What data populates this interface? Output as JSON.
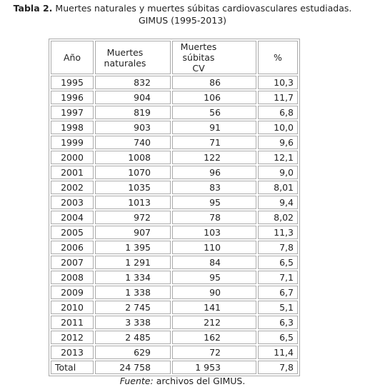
{
  "caption": {
    "label": "Tabla 2.",
    "line1": "Muertes naturales y muertes súbitas cardiovasculares estudiadas.",
    "line2": "GIMUS (1995-2013)"
  },
  "table": {
    "header": [
      "Año",
      "Muertes naturales",
      "Muertes súbitas CV",
      "%"
    ],
    "rows": [
      [
        "1995",
        "832",
        "86",
        "10,3"
      ],
      [
        "1996",
        "904",
        "106",
        "11,7"
      ],
      [
        "1997",
        "819",
        "56",
        "6,8"
      ],
      [
        "1998",
        "903",
        "91",
        "10,0"
      ],
      [
        "1999",
        "740",
        "71",
        "9,6"
      ],
      [
        "2000",
        "1008",
        "122",
        "12,1"
      ],
      [
        "2001",
        "1070",
        "96",
        "9,0"
      ],
      [
        "2002",
        "1035",
        "83",
        "8,01"
      ],
      [
        "2003",
        "1013",
        "95",
        "9,4"
      ],
      [
        "2004",
        "972",
        "78",
        "8,02"
      ],
      [
        "2005",
        "907",
        "103",
        "11,3"
      ],
      [
        "2006",
        "1 395",
        "110",
        "7,8"
      ],
      [
        "2007",
        "1 291",
        "84",
        "6,5"
      ],
      [
        "2008",
        "1 334",
        "95",
        "7,1"
      ],
      [
        "2009",
        "1 338",
        "90",
        "6,7"
      ],
      [
        "2010",
        "2 745",
        "141",
        "5,1"
      ],
      [
        "2011",
        "3 338",
        "212",
        "6,3"
      ],
      [
        "2012",
        "2 485",
        "162",
        "6,5"
      ],
      [
        "2013",
        "629",
        "72",
        "11,4"
      ],
      [
        "Total",
        "24 758",
        "1 953",
        "7,8"
      ]
    ]
  },
  "footnote": {
    "label": "Fuente:",
    "text": "archivos del GIMUS."
  }
}
